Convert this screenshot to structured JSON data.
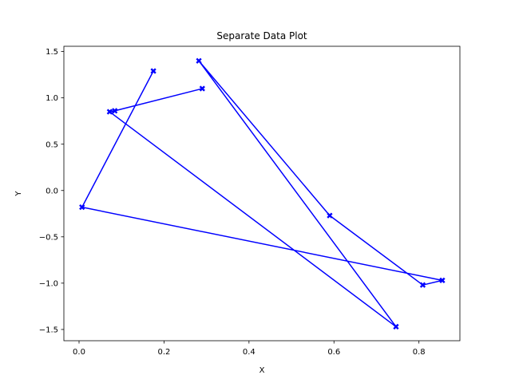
{
  "chart_data": {
    "type": "line",
    "title": "Separate Data Plot",
    "xlabel": "X",
    "ylabel": "Y",
    "xlim": [
      -0.0357,
      0.8964
    ],
    "ylim": [
      -1.6214,
      1.5568
    ],
    "xticks": [
      0.0,
      0.2,
      0.4,
      0.6,
      0.8
    ],
    "xtick_labels": [
      "0.0",
      "0.2",
      "0.4",
      "0.6",
      "0.8"
    ],
    "yticks": [
      -1.5,
      -1.0,
      -0.5,
      0.0,
      0.5,
      1.0,
      1.5
    ],
    "ytick_labels": [
      "−1.5",
      "−1.0",
      "−0.5",
      "0.0",
      "0.5",
      "1.0",
      "1.5"
    ],
    "grid": false,
    "series": [
      {
        "color": "#0000ff",
        "marker": "X",
        "points": [
          {
            "x": 0.29,
            "y": 1.1
          },
          {
            "x": 0.084,
            "y": 0.86
          },
          {
            "x": 0.072,
            "y": 0.85
          },
          {
            "x": 0.746,
            "y": -1.47
          },
          {
            "x": 0.282,
            "y": 1.4
          },
          {
            "x": 0.59,
            "y": -0.27
          },
          {
            "x": 0.809,
            "y": -1.02
          },
          {
            "x": 0.855,
            "y": -0.97
          },
          {
            "x": 0.007,
            "y": -0.18
          },
          {
            "x": 0.175,
            "y": 1.29
          }
        ]
      }
    ]
  }
}
